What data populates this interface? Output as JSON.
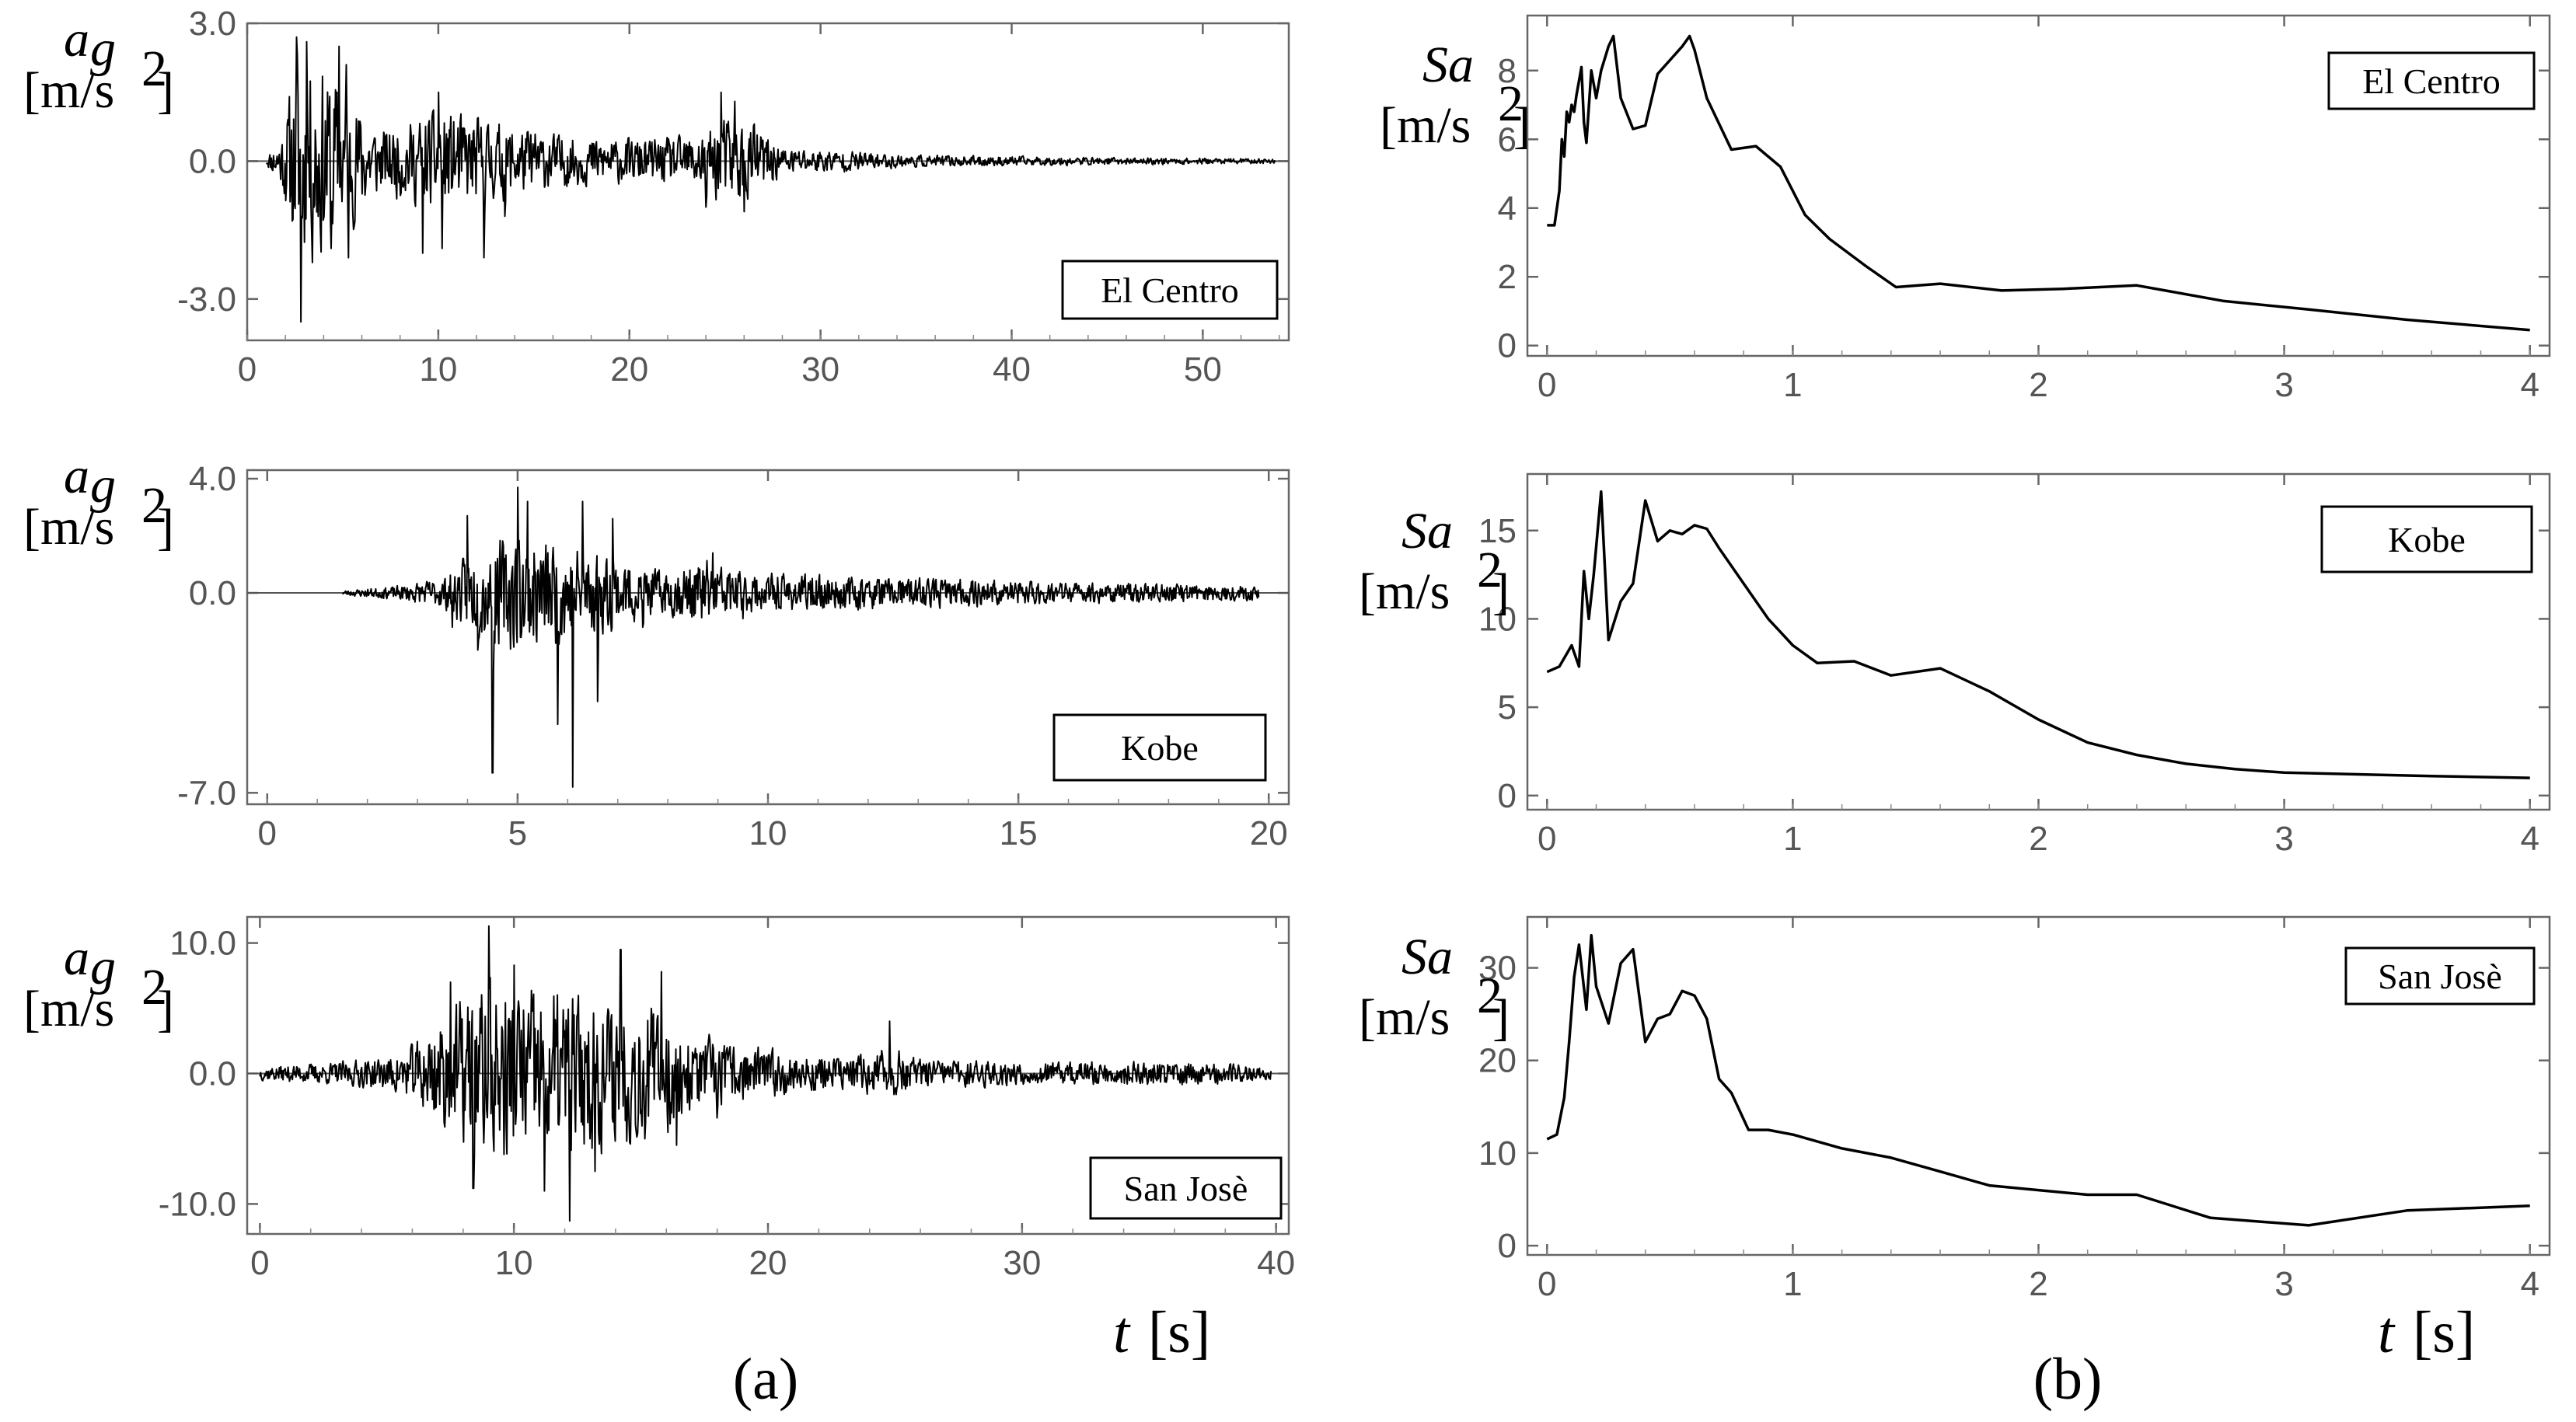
{
  "chart_data": [
    {
      "type": "line",
      "id": "a1",
      "title": "",
      "ylabel_sym": "a",
      "ylabel_sub": "g",
      "ylabel_unit": "[m/s",
      "ylabel_exp": "2",
      "ylabel_close": "]",
      "legend": "El Centro",
      "xlim": [
        0,
        54.5
      ],
      "ylim": [
        -3.9,
        3.0
      ],
      "xticks": [
        0,
        10,
        20,
        30,
        40,
        50
      ],
      "xtick_labels": [
        "0",
        "10",
        "20",
        "30",
        "40",
        "50"
      ],
      "yticks": [
        3.0,
        0.0,
        -3.0
      ],
      "ytick_labels": [
        "3.0",
        "0.0",
        "-3.0"
      ],
      "signal_start": 1.0,
      "signal_end": 53.8,
      "envelope": [
        [
          1.0,
          0.1
        ],
        [
          1.8,
          0.7
        ],
        [
          2.5,
          2.4
        ],
        [
          3.5,
          2.6
        ],
        [
          4.5,
          2.2
        ],
        [
          5.5,
          1.6
        ],
        [
          7,
          0.8
        ],
        [
          8.5,
          1.0
        ],
        [
          10,
          1.3
        ],
        [
          12,
          1.1
        ],
        [
          14,
          0.9
        ],
        [
          16,
          0.7
        ],
        [
          18,
          0.6
        ],
        [
          20,
          0.55
        ],
        [
          23,
          0.6
        ],
        [
          25,
          1.1
        ],
        [
          26.5,
          1.0
        ],
        [
          28,
          0.35
        ],
        [
          30,
          0.3
        ],
        [
          35,
          0.15
        ],
        [
          40,
          0.12
        ],
        [
          45,
          0.09
        ],
        [
          50,
          0.08
        ],
        [
          53.8,
          0.06
        ]
      ],
      "spikes": [
        [
          2.8,
          -3.5
        ],
        [
          2.6,
          2.7
        ],
        [
          3.1,
          2.6
        ],
        [
          4.8,
          2.5
        ],
        [
          4.4,
          -1.9
        ],
        [
          5.3,
          -2.1
        ],
        [
          5.2,
          2.1
        ],
        [
          10.0,
          1.5
        ],
        [
          10.2,
          -1.9
        ],
        [
          12.4,
          -2.1
        ],
        [
          9.2,
          -2.0
        ],
        [
          24.8,
          1.5
        ],
        [
          25.5,
          1.3
        ],
        [
          26.0,
          -1.1
        ],
        [
          24.0,
          -1.0
        ],
        [
          13.5,
          -1.2
        ]
      ],
      "seed": 11
    },
    {
      "type": "line",
      "id": "a2",
      "title": "",
      "ylabel_sym": "a",
      "ylabel_sub": "g",
      "ylabel_unit": "[m/s",
      "ylabel_exp": "2",
      "ylabel_close": "]",
      "legend": "Kobe",
      "xlim": [
        -0.4,
        20.4
      ],
      "ylim": [
        -7.4,
        4.3
      ],
      "xticks": [
        0,
        5,
        10,
        15,
        20
      ],
      "xtick_labels": [
        "0",
        "5",
        "10",
        "15",
        "20"
      ],
      "yticks": [
        4.0,
        0.0,
        -7.0
      ],
      "ytick_labels": [
        "4.0",
        "0.0",
        "-7.0"
      ],
      "signal_start": 1.5,
      "signal_end": 19.8,
      "envelope": [
        [
          1.5,
          0.1
        ],
        [
          2.5,
          0.25
        ],
        [
          3.5,
          0.6
        ],
        [
          4.0,
          1.5
        ],
        [
          4.5,
          2.0
        ],
        [
          5.0,
          2.5
        ],
        [
          5.5,
          2.2
        ],
        [
          6.0,
          2.0
        ],
        [
          6.5,
          1.8
        ],
        [
          7.2,
          1.2
        ],
        [
          8,
          0.9
        ],
        [
          8.8,
          1.4
        ],
        [
          9.5,
          0.8
        ],
        [
          11,
          0.7
        ],
        [
          13,
          0.6
        ],
        [
          15,
          0.5
        ],
        [
          17,
          0.4
        ],
        [
          19.8,
          0.3
        ]
      ],
      "spikes": [
        [
          4.5,
          -6.3
        ],
        [
          4.2,
          -2.0
        ],
        [
          5.0,
          3.7
        ],
        [
          5.2,
          3.2
        ],
        [
          6.1,
          -6.8
        ],
        [
          5.8,
          -4.6
        ],
        [
          6.3,
          3.2
        ],
        [
          6.6,
          -3.8
        ],
        [
          6.9,
          2.6
        ],
        [
          4.0,
          2.7
        ],
        [
          3.7,
          -1.2
        ],
        [
          8.9,
          1.4
        ],
        [
          9.5,
          -0.9
        ],
        [
          7.5,
          -1.2
        ]
      ],
      "seed": 23
    },
    {
      "type": "line",
      "id": "a3",
      "title": "",
      "ylabel_sym": "a",
      "ylabel_sub": "g",
      "ylabel_unit": "[m/s",
      "ylabel_exp": "2",
      "ylabel_close": "]",
      "legend": "San Josè",
      "xlim": [
        -0.5,
        40.5
      ],
      "ylim": [
        -12.3,
        12.0
      ],
      "xticks": [
        0,
        10,
        20,
        30,
        40
      ],
      "xtick_labels": [
        "0",
        "10",
        "20",
        "30",
        "40"
      ],
      "yticks": [
        10.0,
        0.0,
        -10.0
      ],
      "ytick_labels": [
        "10.0",
        "0.0",
        "-10.0"
      ],
      "signal_start": 0.0,
      "signal_end": 39.8,
      "envelope": [
        [
          0,
          0.6
        ],
        [
          3,
          1.0
        ],
        [
          5,
          1.5
        ],
        [
          6,
          2.5
        ],
        [
          7,
          5
        ],
        [
          8.5,
          7.5
        ],
        [
          10,
          8
        ],
        [
          12,
          7.5
        ],
        [
          14,
          6.5
        ],
        [
          15.5,
          6
        ],
        [
          17,
          3.5
        ],
        [
          19,
          2.5
        ],
        [
          21,
          1.8
        ],
        [
          23,
          1.5
        ],
        [
          25,
          2.2
        ],
        [
          26,
          1.2
        ],
        [
          28,
          1.2
        ],
        [
          31,
          1.0
        ],
        [
          35,
          1.1
        ],
        [
          38,
          0.9
        ],
        [
          39.8,
          0.6
        ]
      ],
      "spikes": [
        [
          9.0,
          11.3
        ],
        [
          12.2,
          -11.3
        ],
        [
          8.4,
          -8.8
        ],
        [
          10.0,
          8.3
        ],
        [
          11.2,
          -9.0
        ],
        [
          14.2,
          9.5
        ],
        [
          15.8,
          7.8
        ],
        [
          13.2,
          -7.5
        ],
        [
          7.5,
          7.0
        ],
        [
          9.6,
          -6.2
        ],
        [
          24.8,
          4.0
        ],
        [
          16.4,
          -5.5
        ],
        [
          18.0,
          -3.4
        ]
      ],
      "seed": 37
    },
    {
      "type": "line",
      "id": "b1",
      "title": "",
      "ylabel_sym": "Sa",
      "ylabel_unit": "[m/s",
      "ylabel_exp": "2",
      "ylabel_close": "]",
      "legend": "El Centro",
      "xlim": [
        -0.08,
        4.08
      ],
      "ylim": [
        -0.3,
        9.6
      ],
      "xticks": [
        0,
        1,
        2,
        3,
        4
      ],
      "xtick_labels": [
        "0",
        "1",
        "2",
        "3",
        "4"
      ],
      "yticks": [
        0,
        2,
        4,
        6,
        8
      ],
      "ytick_labels": [
        "0",
        "2",
        "4",
        "6",
        "8"
      ],
      "x": [
        0,
        0.03,
        0.05,
        0.06,
        0.07,
        0.08,
        0.09,
        0.1,
        0.11,
        0.12,
        0.13,
        0.14,
        0.15,
        0.16,
        0.18,
        0.2,
        0.22,
        0.25,
        0.27,
        0.3,
        0.35,
        0.4,
        0.45,
        0.5,
        0.55,
        0.58,
        0.6,
        0.65,
        0.75,
        0.85,
        0.95,
        1.05,
        1.15,
        1.3,
        1.42,
        1.6,
        1.85,
        2.1,
        2.4,
        2.75,
        3.1,
        3.5,
        4.0
      ],
      "y": [
        3.5,
        3.5,
        4.5,
        6.0,
        5.5,
        6.8,
        6.5,
        7.0,
        6.8,
        7.3,
        7.7,
        8.1,
        6.5,
        5.9,
        8.0,
        7.2,
        8.0,
        8.7,
        9.0,
        7.2,
        6.3,
        6.4,
        7.9,
        8.3,
        8.7,
        9.0,
        8.6,
        7.2,
        5.7,
        5.8,
        5.2,
        3.8,
        3.1,
        2.3,
        1.7,
        1.8,
        1.6,
        1.65,
        1.75,
        1.3,
        1.05,
        0.75,
        0.45
      ]
    },
    {
      "type": "line",
      "id": "b2",
      "title": "",
      "ylabel_sym": "Sa",
      "ylabel_unit": "[m/s",
      "ylabel_exp": "2",
      "ylabel_close": "]",
      "legend": "Kobe",
      "xlim": [
        -0.08,
        4.08
      ],
      "ylim": [
        -0.8,
        18.2
      ],
      "xticks": [
        0,
        1,
        2,
        3,
        4
      ],
      "xtick_labels": [
        "0",
        "1",
        "2",
        "3",
        "4"
      ],
      "yticks": [
        0,
        5,
        10,
        15
      ],
      "ytick_labels": [
        "0",
        "5",
        "10",
        "15"
      ],
      "x": [
        0,
        0.05,
        0.1,
        0.13,
        0.15,
        0.17,
        0.19,
        0.22,
        0.25,
        0.3,
        0.35,
        0.4,
        0.45,
        0.5,
        0.55,
        0.6,
        0.65,
        0.7,
        0.8,
        0.9,
        1.0,
        1.1,
        1.25,
        1.4,
        1.6,
        1.8,
        2.0,
        2.2,
        2.4,
        2.6,
        2.8,
        3.0,
        3.3,
        3.6,
        4.0
      ],
      "y": [
        7.0,
        7.3,
        8.5,
        7.3,
        12.7,
        10.0,
        12.5,
        17.2,
        8.8,
        11.0,
        12.0,
        16.7,
        14.4,
        15.0,
        14.8,
        15.3,
        15.1,
        14.0,
        12.0,
        10.0,
        8.5,
        7.5,
        7.6,
        6.8,
        7.2,
        5.9,
        4.3,
        3.0,
        2.3,
        1.8,
        1.5,
        1.3,
        1.2,
        1.1,
        1.0
      ]
    },
    {
      "type": "line",
      "id": "b3",
      "title": "",
      "ylabel_sym": "Sa",
      "ylabel_unit": "[m/s",
      "ylabel_exp": "2",
      "ylabel_close": "]",
      "legend": "San Josè",
      "xlim": [
        -0.08,
        4.08
      ],
      "ylim": [
        -1.0,
        35.5
      ],
      "xticks": [
        0,
        1,
        2,
        3,
        4
      ],
      "xtick_labels": [
        "0",
        "1",
        "2",
        "3",
        "4"
      ],
      "yticks": [
        0,
        10,
        20,
        30
      ],
      "ytick_labels": [
        "0",
        "10",
        "20",
        "30"
      ],
      "x": [
        0,
        0.04,
        0.07,
        0.09,
        0.11,
        0.13,
        0.16,
        0.18,
        0.2,
        0.25,
        0.3,
        0.35,
        0.4,
        0.45,
        0.5,
        0.55,
        0.6,
        0.65,
        0.7,
        0.75,
        0.82,
        0.9,
        1.0,
        1.2,
        1.4,
        1.6,
        1.8,
        2.0,
        2.2,
        2.4,
        2.7,
        3.1,
        3.5,
        4.0
      ],
      "y": [
        11.5,
        12.0,
        16.0,
        22.0,
        29.0,
        32.5,
        25.5,
        33.5,
        28.0,
        24.0,
        30.5,
        32.0,
        22.0,
        24.5,
        25.0,
        27.5,
        27.0,
        24.5,
        18.0,
        16.5,
        12.5,
        12.5,
        12.0,
        10.5,
        9.5,
        8.0,
        6.5,
        6.0,
        5.5,
        5.5,
        3.0,
        2.2,
        3.8,
        4.3
      ]
    }
  ],
  "labels": {
    "t_var": "t",
    "t_unit": "[s]",
    "panel_a": "(a)",
    "panel_b": "(b)"
  }
}
